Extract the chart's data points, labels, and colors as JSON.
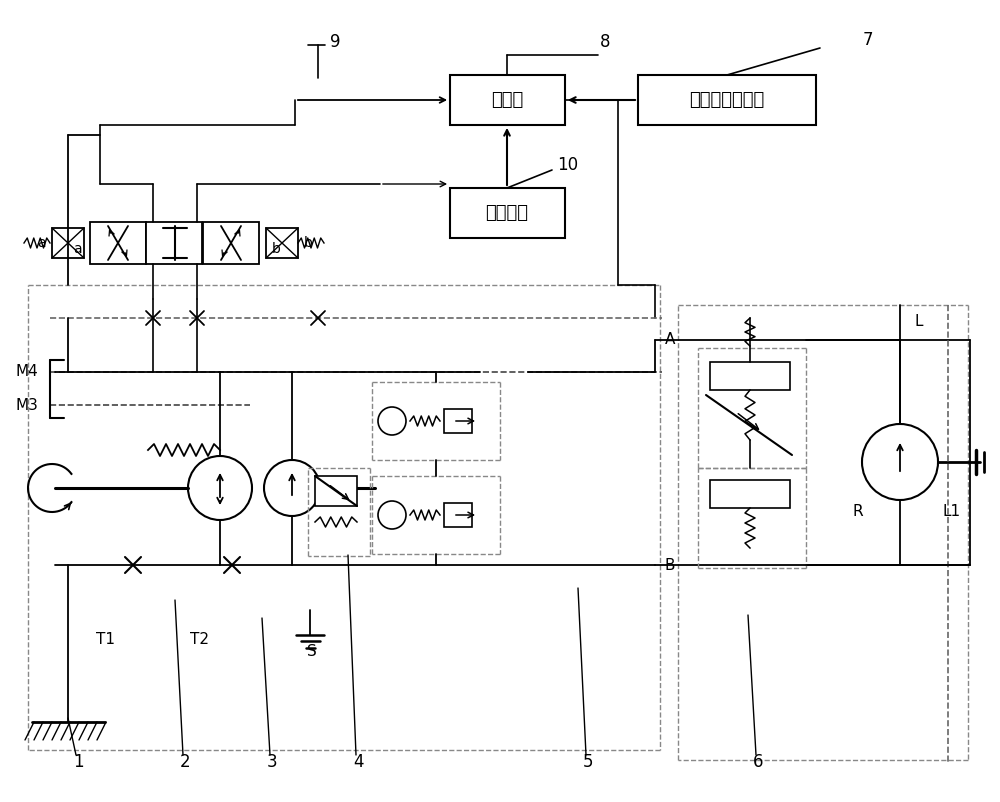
{
  "bg_color": "#ffffff",
  "controller_label": "控制器",
  "sensor_label": "固有频率检测仪",
  "density_label": "密实度仪",
  "label_9": "9",
  "label_8": "8",
  "label_7": "7",
  "label_10": "10",
  "label_A": "A",
  "label_B": "B",
  "label_M4": "M4",
  "label_M3": "M3",
  "label_T1": "T1",
  "label_T2": "T2",
  "label_S": "S",
  "label_a": "a",
  "label_b": "b",
  "label_L": "L",
  "label_R": "R",
  "label_L1": "L1",
  "labels_bottom": [
    "1",
    "2",
    "3",
    "4",
    "5",
    "6"
  ]
}
